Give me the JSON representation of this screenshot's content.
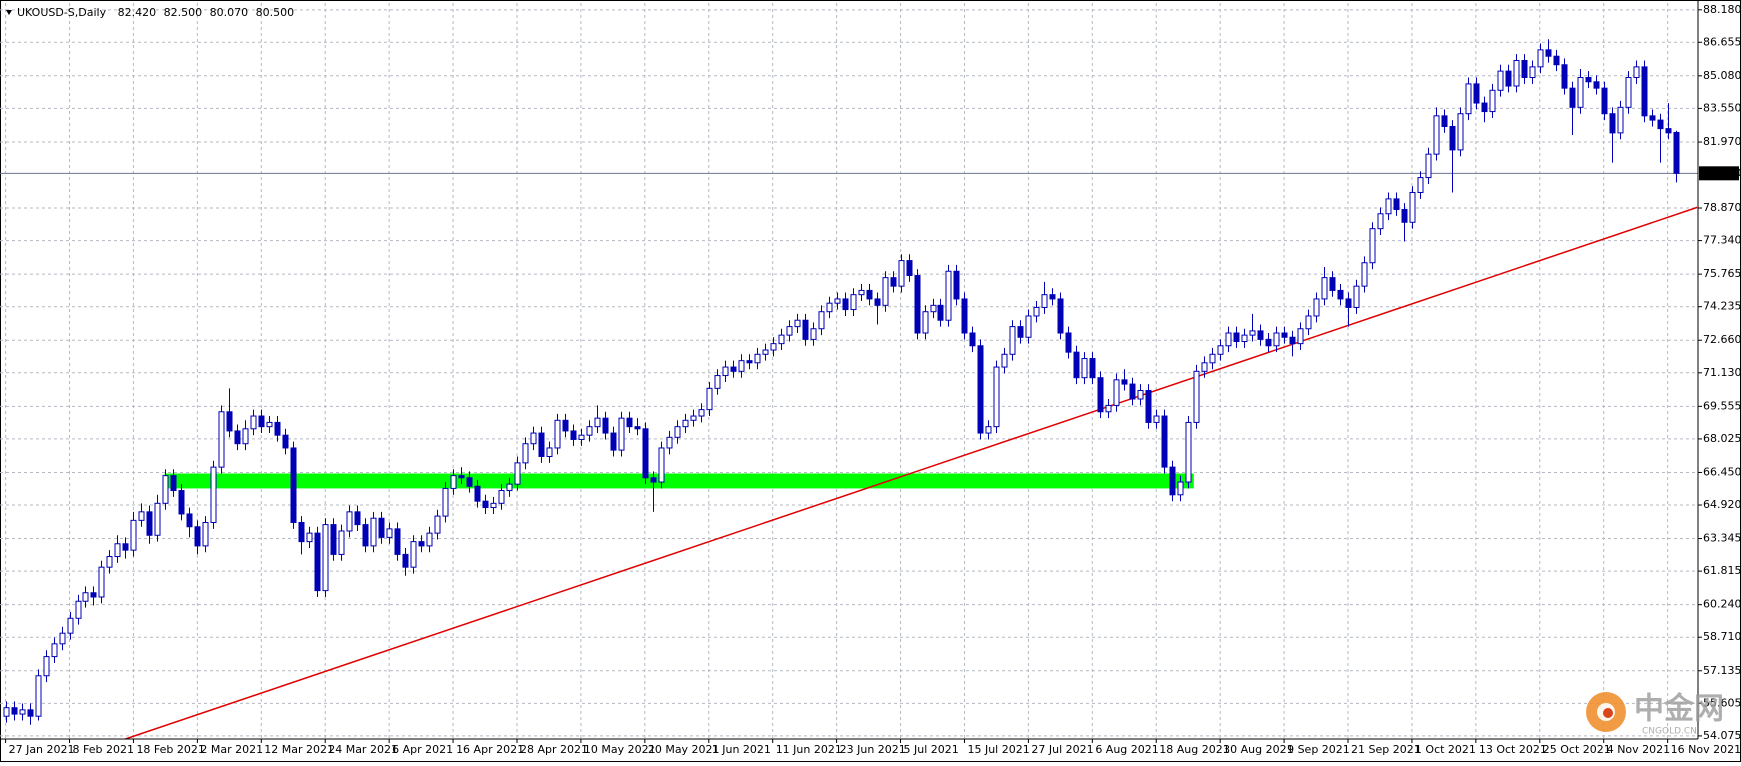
{
  "chart_data": {
    "type": "candlestick",
    "title": "UKOUSD-S,Daily",
    "header_values": [
      "82.420",
      "82.500",
      "80.070",
      "80.500"
    ],
    "color": "#0000b4",
    "grid": true,
    "xlim": [
      -0.7,
      211.8
    ],
    "ylim": [
      53.93,
      88.5
    ],
    "xticks": [
      {
        "value": 0,
        "label": "27 Jan 2021"
      },
      {
        "value": 8,
        "label": "8 Feb 2021"
      },
      {
        "value": 16,
        "label": "18 Feb 2021"
      },
      {
        "value": 24,
        "label": "2 Mar 2021"
      },
      {
        "value": 32,
        "label": "12 Mar 2021"
      },
      {
        "value": 40,
        "label": "24 Mar 2021"
      },
      {
        "value": 48,
        "label": "6 Apr 2021"
      },
      {
        "value": 56,
        "label": "16 Apr 2021"
      },
      {
        "value": 64,
        "label": "28 Apr 2021"
      },
      {
        "value": 72,
        "label": "10 May 2021"
      },
      {
        "value": 80,
        "label": "20 May 2021"
      },
      {
        "value": 88,
        "label": "1 Jun 2021"
      },
      {
        "value": 96,
        "label": "11 Jun 2021"
      },
      {
        "value": 104,
        "label": "23 Jun 2021"
      },
      {
        "value": 112,
        "label": "5 Jul 2021"
      },
      {
        "value": 120,
        "label": "15 Jul 2021"
      },
      {
        "value": 128,
        "label": "27 Jul 2021"
      },
      {
        "value": 136,
        "label": "6 Aug 2021"
      },
      {
        "value": 144,
        "label": "18 Aug 2021"
      },
      {
        "value": 152,
        "label": "30 Aug 2021"
      },
      {
        "value": 160,
        "label": "9 Sep 2021"
      },
      {
        "value": 168,
        "label": "21 Sep 2021"
      },
      {
        "value": 176,
        "label": "1 Oct 2021"
      },
      {
        "value": 184,
        "label": "13 Oct 2021"
      },
      {
        "value": 192,
        "label": "25 Oct 2021"
      },
      {
        "value": 200,
        "label": "4 Nov 2021"
      },
      {
        "value": 208,
        "label": "16 Nov 2021"
      }
    ],
    "yticks": [
      {
        "value": 88.18,
        "label": "88.180"
      },
      86.655,
      {
        "value": 85.08,
        "label": "85.080"
      },
      {
        "value": 83.55,
        "label": "83.550"
      },
      {
        "value": 81.97,
        "label": "81.970"
      },
      {
        "value": 78.87,
        "label": "78.870"
      },
      {
        "value": 77.34,
        "label": "77.340"
      },
      75.765,
      74.235,
      {
        "value": 72.66,
        "label": "72.660"
      },
      {
        "value": 71.13,
        "label": "71.130"
      },
      69.555,
      68.025,
      {
        "value": 66.45,
        "label": "66.450"
      },
      {
        "value": 64.92,
        "label": "64.920"
      },
      63.345,
      61.815,
      {
        "value": 60.24,
        "label": "60.240"
      },
      {
        "value": 58.71,
        "label": "58.710"
      },
      57.135,
      55.605,
      54.075
    ],
    "current_price": {
      "value": 80.5,
      "label": "80.500"
    },
    "trendline": {
      "x": [
        15,
        211.7
      ],
      "y": [
        53.93,
        78.9
      ],
      "color": "#e00000"
    },
    "zone": {
      "x": [
        19.9,
        148.7
      ],
      "y": [
        65.7,
        66.4
      ],
      "color": "#00ff00"
    },
    "ohlc": [
      [
        55.0,
        55.7,
        54.7,
        55.4
      ],
      [
        55.4,
        55.7,
        54.8,
        55.1
      ],
      [
        55.1,
        55.6,
        54.8,
        55.3
      ],
      [
        55.3,
        55.6,
        54.6,
        55.0
      ],
      [
        55.0,
        57.2,
        54.8,
        56.9
      ],
      [
        56.9,
        58.1,
        56.6,
        57.8
      ],
      [
        57.8,
        58.7,
        57.5,
        58.4
      ],
      [
        58.4,
        59.2,
        58.1,
        58.9
      ],
      [
        58.9,
        59.9,
        58.6,
        59.6
      ],
      [
        59.6,
        60.7,
        59.3,
        60.4
      ],
      [
        60.4,
        61.1,
        60.1,
        60.8
      ],
      [
        60.8,
        61.1,
        60.2,
        60.6
      ],
      [
        60.6,
        62.3,
        60.3,
        62.0
      ],
      [
        62.0,
        62.8,
        61.7,
        62.5
      ],
      [
        62.5,
        63.5,
        62.2,
        63.1
      ],
      [
        63.1,
        63.4,
        62.4,
        62.8
      ],
      [
        62.8,
        64.6,
        62.5,
        64.2
      ],
      [
        64.2,
        65.0,
        63.9,
        64.6
      ],
      [
        64.6,
        64.9,
        63.1,
        63.5
      ],
      [
        63.5,
        65.4,
        63.2,
        65.0
      ],
      [
        65.0,
        66.6,
        64.7,
        66.3
      ],
      [
        66.3,
        66.6,
        65.3,
        65.6
      ],
      [
        65.6,
        65.9,
        64.2,
        64.5
      ],
      [
        64.5,
        64.8,
        63.4,
        63.9
      ],
      [
        63.9,
        64.2,
        62.6,
        63.0
      ],
      [
        63.0,
        64.4,
        62.7,
        64.1
      ],
      [
        64.1,
        67.0,
        63.8,
        66.7
      ],
      [
        66.7,
        69.6,
        66.4,
        69.3
      ],
      [
        69.3,
        70.4,
        68.1,
        68.4
      ],
      [
        68.4,
        68.7,
        67.5,
        67.8
      ],
      [
        67.8,
        68.9,
        67.5,
        68.5
      ],
      [
        68.5,
        69.4,
        68.2,
        69.1
      ],
      [
        69.1,
        69.4,
        68.3,
        68.6
      ],
      [
        68.6,
        69.1,
        68.3,
        68.8
      ],
      [
        68.8,
        69.1,
        67.9,
        68.2
      ],
      [
        68.2,
        68.5,
        67.3,
        67.6
      ],
      [
        67.6,
        67.9,
        63.8,
        64.1
      ],
      [
        64.1,
        64.4,
        62.6,
        63.2
      ],
      [
        63.2,
        63.9,
        62.9,
        63.6
      ],
      [
        63.6,
        63.9,
        60.6,
        60.9
      ],
      [
        60.9,
        64.3,
        60.6,
        64.0
      ],
      [
        64.0,
        64.3,
        62.3,
        62.6
      ],
      [
        62.6,
        64.0,
        62.3,
        63.7
      ],
      [
        63.7,
        64.9,
        63.4,
        64.6
      ],
      [
        64.6,
        64.9,
        63.7,
        64.0
      ],
      [
        64.0,
        64.3,
        62.7,
        63.0
      ],
      [
        63.0,
        64.6,
        62.7,
        64.3
      ],
      [
        64.3,
        64.6,
        63.1,
        63.4
      ],
      [
        63.4,
        64.1,
        63.1,
        63.8
      ],
      [
        63.8,
        64.1,
        62.3,
        62.6
      ],
      [
        62.6,
        62.9,
        61.6,
        62.0
      ],
      [
        62.0,
        63.5,
        61.7,
        63.2
      ],
      [
        63.2,
        63.5,
        62.7,
        63.0
      ],
      [
        63.0,
        63.9,
        62.7,
        63.6
      ],
      [
        63.6,
        64.7,
        63.3,
        64.4
      ],
      [
        64.4,
        66.0,
        64.1,
        65.7
      ],
      [
        65.7,
        66.6,
        65.4,
        66.3
      ],
      [
        66.3,
        66.7,
        65.9,
        66.2
      ],
      [
        66.2,
        66.5,
        65.5,
        65.8
      ],
      [
        65.8,
        66.1,
        64.8,
        65.1
      ],
      [
        65.1,
        65.4,
        64.5,
        64.8
      ],
      [
        64.8,
        65.3,
        64.5,
        65.0
      ],
      [
        65.0,
        65.9,
        64.7,
        65.6
      ],
      [
        65.6,
        66.2,
        65.3,
        65.9
      ],
      [
        65.9,
        67.2,
        65.6,
        66.9
      ],
      [
        66.9,
        68.1,
        66.6,
        67.8
      ],
      [
        67.8,
        68.6,
        67.5,
        68.3
      ],
      [
        68.3,
        68.6,
        66.9,
        67.2
      ],
      [
        67.2,
        67.9,
        66.9,
        67.6
      ],
      [
        67.6,
        69.2,
        67.3,
        68.9
      ],
      [
        68.9,
        69.2,
        68.1,
        68.4
      ],
      [
        68.4,
        68.7,
        67.7,
        68.0
      ],
      [
        68.0,
        68.5,
        67.7,
        68.2
      ],
      [
        68.2,
        68.9,
        67.9,
        68.6
      ],
      [
        68.6,
        69.6,
        68.3,
        69.0
      ],
      [
        69.0,
        69.3,
        68.0,
        68.3
      ],
      [
        68.3,
        68.6,
        67.2,
        67.5
      ],
      [
        67.5,
        69.3,
        67.2,
        69.0
      ],
      [
        69.0,
        69.3,
        68.3,
        68.6
      ],
      [
        68.6,
        69.0,
        68.2,
        68.5
      ],
      [
        68.5,
        68.8,
        65.9,
        66.2
      ],
      [
        66.2,
        66.5,
        64.6,
        66.0
      ],
      [
        66.0,
        67.9,
        65.7,
        67.6
      ],
      [
        67.6,
        68.4,
        67.3,
        68.1
      ],
      [
        68.1,
        68.9,
        67.8,
        68.6
      ],
      [
        68.6,
        69.2,
        68.3,
        68.9
      ],
      [
        68.9,
        69.4,
        68.6,
        69.1
      ],
      [
        69.1,
        69.7,
        68.8,
        69.4
      ],
      [
        69.4,
        70.7,
        69.1,
        70.4
      ],
      [
        70.4,
        71.3,
        70.1,
        71.0
      ],
      [
        71.0,
        71.7,
        70.7,
        71.4
      ],
      [
        71.4,
        71.7,
        70.9,
        71.2
      ],
      [
        71.2,
        72.0,
        70.9,
        71.7
      ],
      [
        71.7,
        72.0,
        71.3,
        71.6
      ],
      [
        71.6,
        72.3,
        71.3,
        72.0
      ],
      [
        72.0,
        72.5,
        71.7,
        72.2
      ],
      [
        72.2,
        72.8,
        71.9,
        72.5
      ],
      [
        72.5,
        73.2,
        72.2,
        72.9
      ],
      [
        72.9,
        73.6,
        72.6,
        73.3
      ],
      [
        73.3,
        73.9,
        73.0,
        73.6
      ],
      [
        73.6,
        73.9,
        72.4,
        72.7
      ],
      [
        72.7,
        73.5,
        72.4,
        73.2
      ],
      [
        73.2,
        74.3,
        72.9,
        74.0
      ],
      [
        74.0,
        74.7,
        73.7,
        74.4
      ],
      [
        74.4,
        74.9,
        74.1,
        74.6
      ],
      [
        74.6,
        74.9,
        73.8,
        74.1
      ],
      [
        74.1,
        75.1,
        73.8,
        74.8
      ],
      [
        74.8,
        75.3,
        74.5,
        75.0
      ],
      [
        75.0,
        75.3,
        74.3,
        74.6
      ],
      [
        74.6,
        74.9,
        73.4,
        74.3
      ],
      [
        74.3,
        75.9,
        74.0,
        75.6
      ],
      [
        75.6,
        75.9,
        74.9,
        75.2
      ],
      [
        75.2,
        76.7,
        74.9,
        76.4
      ],
      [
        76.4,
        76.7,
        75.4,
        75.7
      ],
      [
        75.7,
        76.0,
        72.7,
        73.0
      ],
      [
        73.0,
        74.3,
        72.7,
        74.0
      ],
      [
        74.0,
        74.6,
        73.7,
        74.3
      ],
      [
        74.3,
        74.6,
        73.3,
        73.6
      ],
      [
        73.6,
        76.2,
        73.3,
        75.9
      ],
      [
        75.9,
        76.2,
        74.3,
        74.6
      ],
      [
        74.6,
        74.9,
        72.7,
        73.0
      ],
      [
        73.0,
        73.3,
        72.1,
        72.4
      ],
      [
        72.4,
        72.7,
        68.0,
        68.3
      ],
      [
        68.3,
        68.9,
        68.0,
        68.6
      ],
      [
        68.6,
        71.7,
        68.3,
        71.4
      ],
      [
        71.4,
        72.3,
        71.1,
        72.0
      ],
      [
        72.0,
        73.6,
        71.7,
        73.3
      ],
      [
        73.3,
        73.6,
        72.5,
        72.8
      ],
      [
        72.8,
        74.1,
        72.5,
        73.8
      ],
      [
        73.8,
        74.5,
        73.5,
        74.2
      ],
      [
        74.2,
        75.4,
        73.9,
        74.8
      ],
      [
        74.8,
        75.1,
        74.3,
        74.6
      ],
      [
        74.6,
        74.9,
        72.7,
        73.0
      ],
      [
        73.0,
        73.3,
        71.8,
        72.1
      ],
      [
        72.1,
        72.4,
        70.6,
        70.9
      ],
      [
        70.9,
        72.1,
        70.6,
        71.8
      ],
      [
        71.8,
        72.1,
        70.6,
        70.9
      ],
      [
        70.9,
        71.2,
        69.0,
        69.3
      ],
      [
        69.3,
        69.9,
        69.0,
        69.6
      ],
      [
        69.6,
        71.1,
        69.3,
        70.8
      ],
      [
        70.8,
        71.3,
        70.3,
        70.6
      ],
      [
        70.6,
        70.9,
        69.6,
        69.9
      ],
      [
        69.9,
        70.6,
        69.6,
        70.3
      ],
      [
        70.3,
        70.6,
        68.5,
        68.8
      ],
      [
        68.8,
        69.4,
        68.5,
        69.1
      ],
      [
        69.1,
        69.4,
        66.4,
        66.7
      ],
      [
        66.7,
        67.0,
        65.1,
        65.4
      ],
      [
        65.4,
        66.3,
        65.1,
        66.0
      ],
      [
        66.0,
        69.1,
        65.7,
        68.8
      ],
      [
        68.8,
        71.5,
        68.5,
        71.2
      ],
      [
        71.2,
        71.9,
        70.9,
        71.6
      ],
      [
        71.6,
        72.3,
        71.3,
        72.0
      ],
      [
        72.0,
        72.7,
        71.7,
        72.4
      ],
      [
        72.4,
        73.3,
        72.1,
        73.0
      ],
      [
        73.0,
        73.3,
        72.3,
        72.6
      ],
      [
        72.6,
        73.2,
        72.3,
        72.9
      ],
      [
        72.9,
        73.9,
        72.6,
        73.1
      ],
      [
        73.1,
        73.4,
        72.4,
        72.7
      ],
      [
        72.7,
        73.0,
        72.1,
        72.4
      ],
      [
        72.4,
        73.3,
        72.1,
        73.0
      ],
      [
        73.0,
        73.3,
        72.5,
        72.8
      ],
      [
        72.8,
        73.1,
        71.9,
        72.5
      ],
      [
        72.5,
        73.5,
        72.2,
        73.2
      ],
      [
        73.2,
        74.1,
        72.9,
        73.8
      ],
      [
        73.8,
        74.9,
        73.5,
        74.6
      ],
      [
        74.6,
        76.1,
        74.3,
        75.6
      ],
      [
        75.6,
        75.9,
        74.7,
        75.0
      ],
      [
        75.0,
        75.3,
        74.3,
        74.6
      ],
      [
        74.6,
        74.9,
        73.3,
        74.2
      ],
      [
        74.2,
        75.5,
        73.9,
        75.2
      ],
      [
        75.2,
        76.6,
        74.9,
        76.3
      ],
      [
        76.3,
        78.2,
        76.0,
        77.9
      ],
      [
        77.9,
        78.9,
        77.6,
        78.6
      ],
      [
        78.6,
        79.6,
        78.3,
        79.3
      ],
      [
        79.3,
        79.6,
        78.5,
        78.8
      ],
      [
        78.8,
        79.1,
        77.3,
        78.2
      ],
      [
        78.2,
        79.9,
        77.9,
        79.6
      ],
      [
        79.6,
        80.6,
        79.3,
        80.3
      ],
      [
        80.3,
        81.7,
        80.0,
        81.4
      ],
      [
        81.4,
        83.6,
        81.1,
        83.2
      ],
      [
        83.2,
        83.5,
        82.4,
        82.7
      ],
      [
        82.7,
        83.0,
        79.6,
        81.6
      ],
      [
        81.6,
        83.6,
        81.3,
        83.3
      ],
      [
        83.3,
        85.0,
        83.0,
        84.7
      ],
      [
        84.7,
        85.0,
        83.5,
        83.8
      ],
      [
        83.8,
        84.1,
        82.9,
        83.4
      ],
      [
        83.4,
        84.7,
        83.1,
        84.4
      ],
      [
        84.4,
        85.6,
        84.1,
        85.3
      ],
      [
        85.3,
        85.6,
        84.3,
        84.6
      ],
      [
        84.6,
        86.1,
        84.3,
        85.8
      ],
      [
        85.8,
        86.1,
        84.7,
        85.0
      ],
      [
        85.0,
        85.8,
        84.7,
        85.5
      ],
      [
        85.5,
        86.6,
        85.2,
        86.3
      ],
      [
        86.3,
        86.8,
        85.7,
        86.0
      ],
      [
        86.0,
        86.3,
        85.3,
        85.6
      ],
      [
        85.6,
        85.9,
        84.2,
        84.5
      ],
      [
        84.5,
        84.8,
        82.3,
        83.6
      ],
      [
        83.6,
        85.4,
        83.3,
        85.0
      ],
      [
        85.0,
        85.3,
        84.5,
        84.8
      ],
      [
        84.8,
        85.1,
        84.2,
        84.5
      ],
      [
        84.5,
        84.8,
        83.0,
        83.3
      ],
      [
        83.3,
        83.6,
        81.0,
        82.4
      ],
      [
        82.4,
        83.9,
        82.1,
        83.6
      ],
      [
        83.6,
        85.3,
        83.3,
        85.0
      ],
      [
        85.0,
        85.8,
        84.7,
        85.5
      ],
      [
        85.5,
        85.8,
        82.9,
        83.2
      ],
      [
        83.2,
        83.5,
        82.7,
        83.0
      ],
      [
        83.0,
        83.3,
        81.0,
        82.6
      ],
      [
        82.6,
        83.8,
        82.1,
        82.4
      ],
      [
        82.42,
        82.5,
        80.07,
        80.5
      ]
    ]
  },
  "watermark": {
    "title": "中金网",
    "subtitle": "CNGOLD.CN"
  }
}
